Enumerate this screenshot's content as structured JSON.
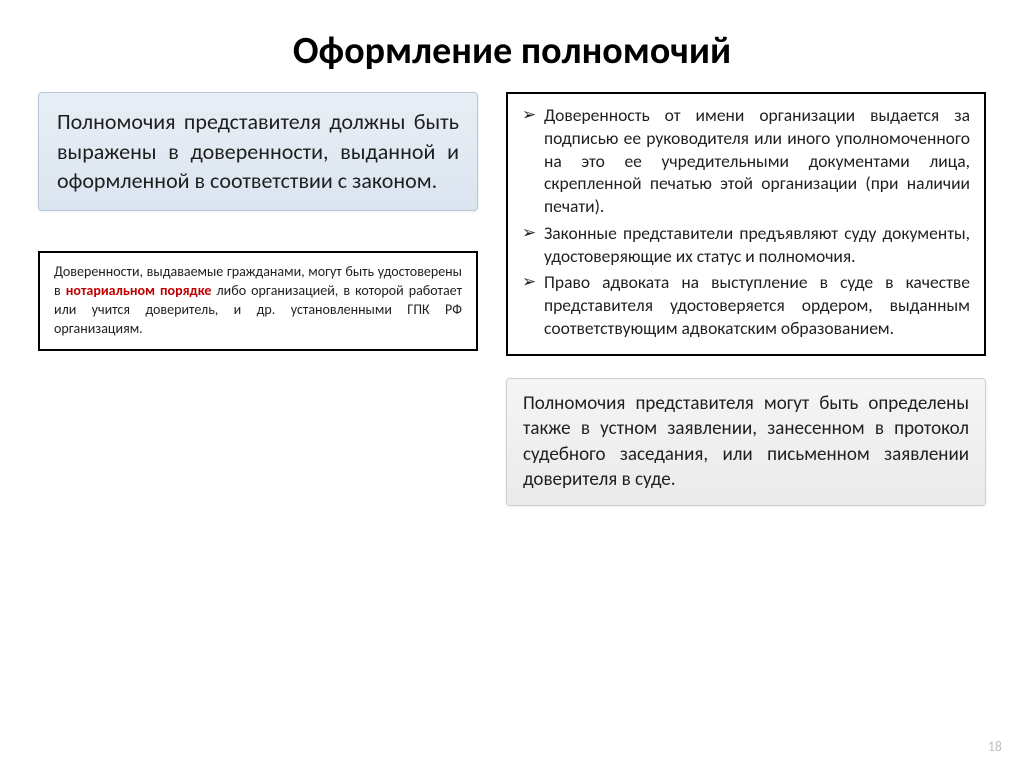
{
  "title": "Оформление полномочий",
  "left": {
    "blue_box": "Полномочия представителя должны быть выражены в доверенности, выданной и оформленной в соответствии с законом.",
    "black_box_pre": "Доверенности, выдаваемые гражданами, могут быть удостоверены в ",
    "black_box_red": "нотариальном порядке",
    "black_box_post": " либо организацией, в которой работает или учится доверитель, и др. установленными ГПК РФ организациям."
  },
  "right": {
    "bullets": [
      "Доверенность от имени организации выдается за подписью ее руководителя или иного уполномоченного на это ее учредительными документами лица, скрепленной печатью этой организации (при наличии печати).",
      " Законные представители предъявляют суду документы, удостоверяющие их статус и полномочия.",
      "Право адвоката на выступление в суде в качестве представителя удостоверяется ордером, выданным соответствующим адвокатским образованием."
    ],
    "gray_box": "Полномочия представителя могут быть определены также в устном заявлении, занесенном в протокол судебного заседания, или письменном заявлении доверителя в суде."
  },
  "page_number": "18",
  "colors": {
    "red": "#c00000",
    "blue_bg_top": "#e8eef5",
    "blue_bg_bottom": "#dbe5f0",
    "gray_bg_top": "#f5f5f5",
    "gray_bg_bottom": "#eaeaea"
  }
}
